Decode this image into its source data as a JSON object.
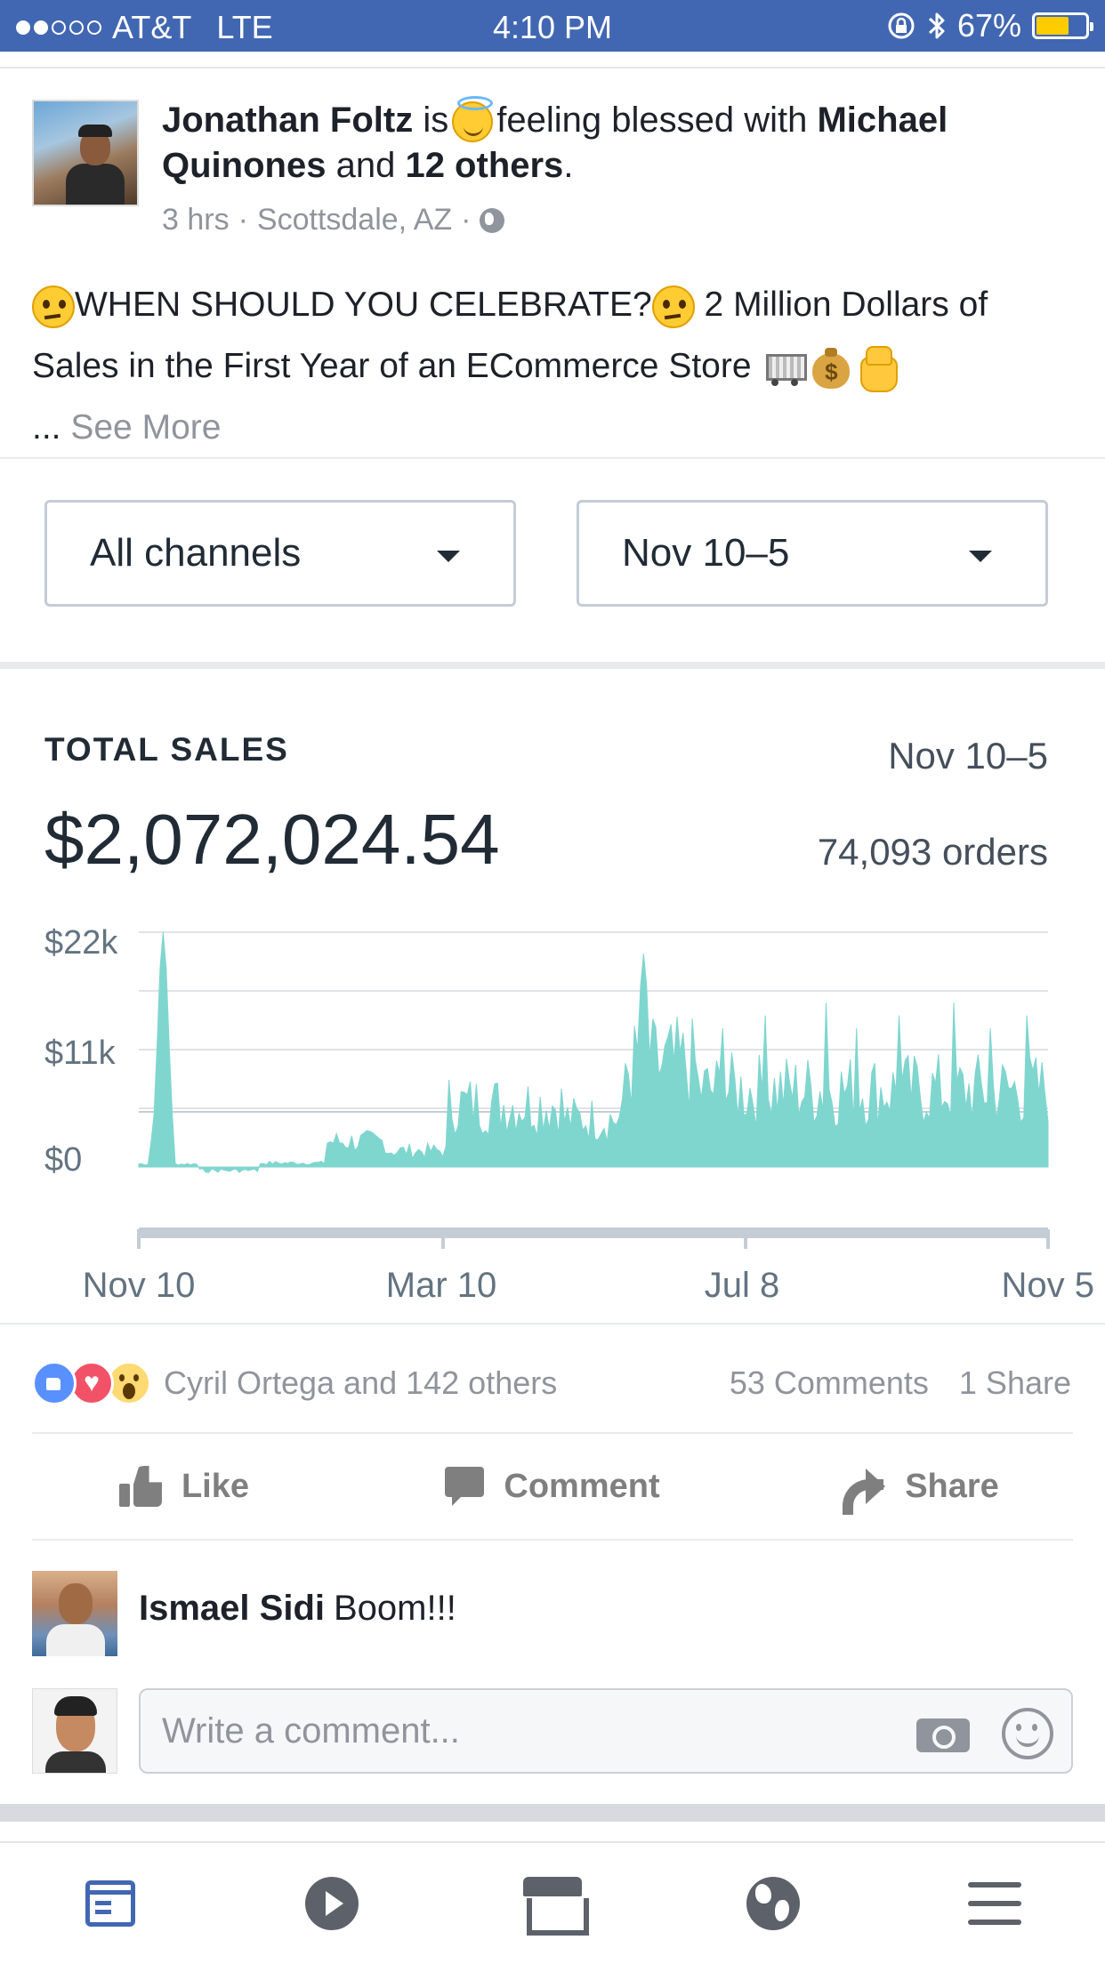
{
  "status_bar": {
    "carrier": "AT&T",
    "network": "LTE",
    "time": "4:10 PM",
    "battery_pct": "67%",
    "battery_level": 0.67,
    "signal_bars": 2
  },
  "post": {
    "author": "Jonathan Foltz",
    "is": "is",
    "feeling": "feeling blessed with",
    "with_name": "Michael Quinones",
    "and": "and",
    "others": "12 others",
    "time": "3 hrs",
    "location": "Scottsdale, AZ",
    "text_line1": "WHEN SHOULD YOU CELEBRATE?",
    "text_line1b": "2 Million Dollars of Sales in the First Year of an ECommerce Store",
    "ellipsis": "...",
    "see_more": "See More"
  },
  "shopify": {
    "channel_select": "All channels",
    "date_select": "Nov 10–5",
    "total_sales_label": "TOTAL SALES",
    "range": "Nov 10–5",
    "amount": "$2,072,024.54",
    "orders": "74,093 orders"
  },
  "chart_data": {
    "type": "area",
    "y_ticks": [
      "$22k",
      "$11k",
      "$0"
    ],
    "x_ticks": [
      "Nov 10",
      "Mar 10",
      "Jul 8",
      "Nov 5"
    ],
    "ylim": [
      0,
      22000
    ],
    "grid": true,
    "color": "#7fd6cf",
    "segments": [
      {
        "from": 0,
        "to": 4,
        "base": 300
      },
      {
        "from": 4,
        "to": 12,
        "base": 2500,
        "peak_at": 8,
        "peak": 22000
      },
      {
        "from": 12,
        "to": 20,
        "base": 300
      },
      {
        "from": 20,
        "to": 40,
        "base": -400
      },
      {
        "from": 40,
        "to": 62,
        "base": 400
      },
      {
        "from": 62,
        "to": 82,
        "base": 2500
      },
      {
        "from": 82,
        "to": 102,
        "base": 1600
      },
      {
        "from": 102,
        "to": 140,
        "base": 6500
      },
      {
        "from": 140,
        "to": 160,
        "base": 5000
      },
      {
        "from": 160,
        "to": 184,
        "base": 10500,
        "peak_at": 166,
        "peak": 20000
      },
      {
        "from": 184,
        "to": 300,
        "base": 8000
      }
    ]
  },
  "reactions": {
    "names": "Cyril Ortega and 142 others",
    "comments": "53 Comments",
    "shares": "1 Share"
  },
  "actions": {
    "like": "Like",
    "comment": "Comment",
    "share": "Share"
  },
  "comment": {
    "author": "Ismael Sidi",
    "text": "Boom!!!"
  },
  "composer": {
    "placeholder": "Write a comment..."
  },
  "icons": {
    "tab_bar": [
      "news-feed-icon",
      "video-icon",
      "marketplace-icon",
      "notifications-globe-icon",
      "menu-icon"
    ]
  },
  "colors": {
    "facebook_blue": "#4267b2",
    "chart_fill": "#7fd6cf",
    "muted_text": "#90949c"
  }
}
